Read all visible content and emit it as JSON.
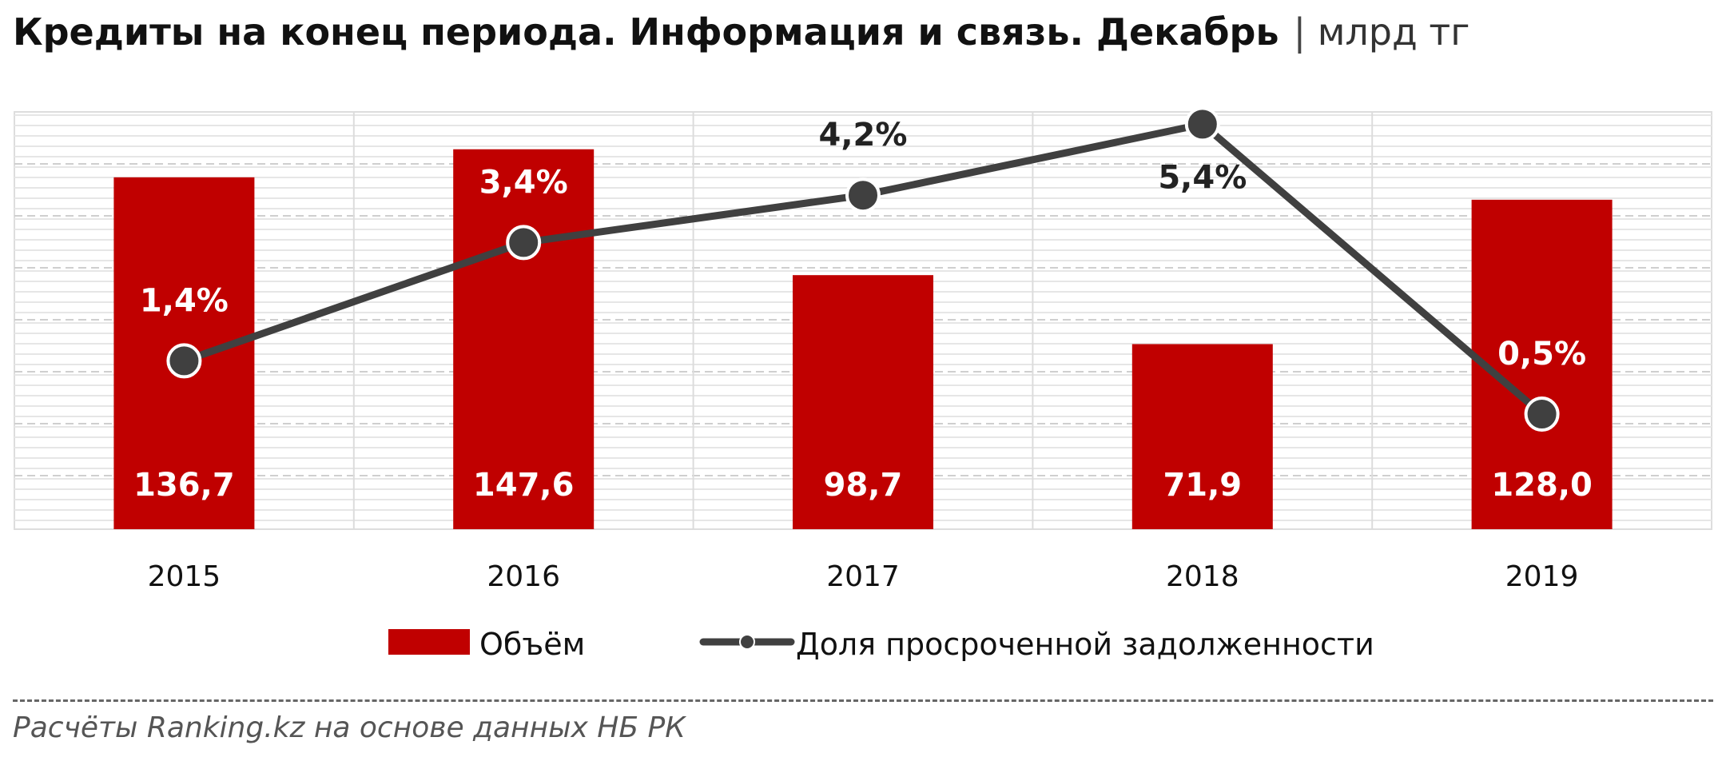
{
  "title": {
    "main": "Кредиты на конец периода. Информация и связь. Декабрь",
    "separator": "|",
    "unit": "млрд тг"
  },
  "source": "Расчёты Ranking.kz на основе данных НБ РК",
  "colors": {
    "bar": "#C00000",
    "line": "#404040",
    "marker_outline": "#ffffff",
    "bar_label": "#ffffff",
    "line_label_on_bar": "#ffffff",
    "line_label_off_bar": "#222222",
    "plot_background": "#ffffff"
  },
  "chart_data": {
    "type": "bar",
    "categories": [
      "2015",
      "2016",
      "2017",
      "2018",
      "2019"
    ],
    "series": [
      {
        "name": "Объём",
        "type": "bar",
        "values": [
          136.7,
          147.6,
          98.7,
          71.9,
          128.0
        ],
        "labels": [
          "136,7",
          "147,6",
          "98,7",
          "71,9",
          "128,0"
        ]
      },
      {
        "name": "Доля просроченной задолженности",
        "type": "line",
        "values": [
          1.4,
          3.4,
          4.2,
          5.4,
          0.5
        ],
        "labels": [
          "1,4%",
          "3,4%",
          "4,2%",
          "5,4%",
          "0,5%"
        ]
      }
    ],
    "legend": {
      "position": "bottom"
    },
    "grid": true
  }
}
